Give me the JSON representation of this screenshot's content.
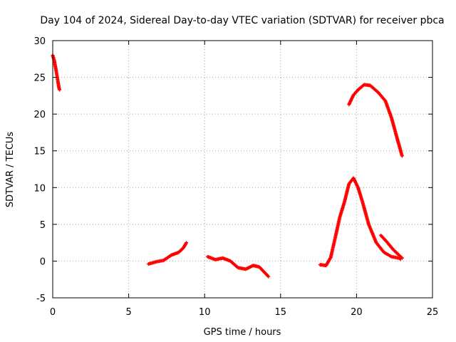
{
  "chart_data": {
    "type": "scatter",
    "title": "Day 104 of 2024, Sidereal Day-to-day VTEC variation (SDTVAR) for receiver pbca",
    "xlabel": "GPS time / hours",
    "ylabel": "SDTVAR / TECUs",
    "xlim": [
      0,
      25
    ],
    "ylim": [
      -5,
      30
    ],
    "xticks": [
      0,
      5,
      10,
      15,
      20,
      25
    ],
    "yticks": [
      -5,
      0,
      5,
      10,
      15,
      20,
      25,
      30
    ],
    "grid": true,
    "marker": "plus",
    "series_color": "#ff0000",
    "segments": [
      {
        "name": "arc-1",
        "points": [
          [
            0.0,
            28.0
          ],
          [
            0.1,
            27.3
          ],
          [
            0.2,
            26.2
          ],
          [
            0.3,
            25.0
          ],
          [
            0.4,
            23.7
          ],
          [
            0.45,
            23.3
          ]
        ]
      },
      {
        "name": "arc-2",
        "points": [
          [
            6.3,
            -0.4
          ],
          [
            6.8,
            -0.1
          ],
          [
            7.3,
            0.1
          ],
          [
            7.8,
            0.8
          ],
          [
            8.3,
            1.2
          ],
          [
            8.6,
            1.8
          ],
          [
            8.8,
            2.5
          ]
        ]
      },
      {
        "name": "arc-3",
        "points": [
          [
            10.2,
            0.6
          ],
          [
            10.7,
            0.2
          ],
          [
            11.2,
            0.4
          ],
          [
            11.7,
            0.0
          ],
          [
            12.2,
            -0.9
          ],
          [
            12.7,
            -1.1
          ],
          [
            13.2,
            -0.6
          ],
          [
            13.6,
            -0.8
          ],
          [
            14.2,
            -2.1
          ]
        ]
      },
      {
        "name": "arc-4",
        "points": [
          [
            17.6,
            -0.5
          ],
          [
            18.0,
            -0.6
          ],
          [
            18.3,
            0.5
          ],
          [
            18.6,
            3.2
          ],
          [
            18.9,
            6.0
          ],
          [
            19.2,
            8.0
          ],
          [
            19.5,
            10.5
          ],
          [
            19.8,
            11.3
          ],
          [
            20.1,
            10.0
          ],
          [
            20.4,
            8.0
          ],
          [
            20.8,
            5.0
          ],
          [
            21.3,
            2.5
          ],
          [
            21.8,
            1.2
          ],
          [
            22.3,
            0.6
          ],
          [
            22.8,
            0.4
          ],
          [
            22.9,
            0.3
          ]
        ]
      },
      {
        "name": "arc-5",
        "points": [
          [
            21.6,
            3.5
          ],
          [
            22.0,
            2.6
          ],
          [
            22.4,
            1.6
          ],
          [
            22.8,
            0.8
          ],
          [
            23.0,
            0.4
          ]
        ]
      },
      {
        "name": "arc-6",
        "points": [
          [
            19.5,
            21.3
          ],
          [
            19.8,
            22.6
          ],
          [
            20.1,
            23.3
          ],
          [
            20.5,
            24.0
          ],
          [
            20.9,
            23.9
          ],
          [
            21.4,
            23.0
          ],
          [
            21.9,
            21.8
          ],
          [
            22.3,
            19.5
          ],
          [
            22.7,
            16.5
          ],
          [
            23.0,
            14.3
          ]
        ]
      }
    ]
  }
}
